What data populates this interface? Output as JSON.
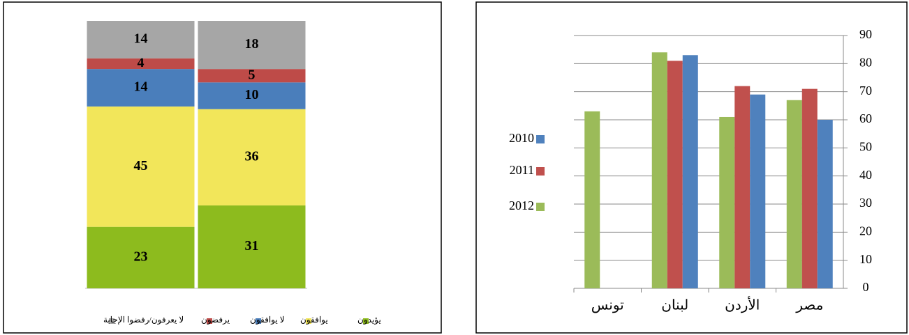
{
  "chart_data": [
    {
      "type": "stacked_bar",
      "categories": [
        null,
        null
      ],
      "series": [
        {
          "name": "يؤيدون",
          "color": "#8dbb1e",
          "values": [
            23,
            31
          ]
        },
        {
          "name": "يوافقون",
          "color": "#f2e65a",
          "values": [
            45,
            36
          ]
        },
        {
          "name": "لا يوافقون",
          "color": "#4a7ebb",
          "values": [
            14,
            10
          ]
        },
        {
          "name": "يرفضون",
          "color": "#be4b48",
          "values": [
            4,
            5
          ]
        },
        {
          "name": "لا يعرفون/رفضوا الإجابة",
          "color": "#a6a6a6",
          "values": [
            14,
            18
          ]
        }
      ],
      "ylim": [
        0,
        100
      ],
      "legend": "bottom"
    },
    {
      "type": "bar",
      "categories": [
        "تونس",
        "لبنان",
        "الأردن",
        "مصر"
      ],
      "series": [
        {
          "name": "2012",
          "color": "#9bbb59",
          "values": [
            63,
            84,
            61,
            67
          ]
        },
        {
          "name": "2011",
          "color": "#c0504d",
          "values": [
            null,
            81,
            72,
            71
          ]
        },
        {
          "name": "2010",
          "color": "#4f81bd",
          "values": [
            null,
            83,
            69,
            60
          ]
        }
      ],
      "ylim": [
        0,
        90
      ],
      "yticks": [
        0,
        10,
        20,
        30,
        40,
        50,
        60,
        70,
        80,
        90
      ],
      "y_axis_side": "right",
      "grid": true,
      "legend": "left"
    }
  ]
}
